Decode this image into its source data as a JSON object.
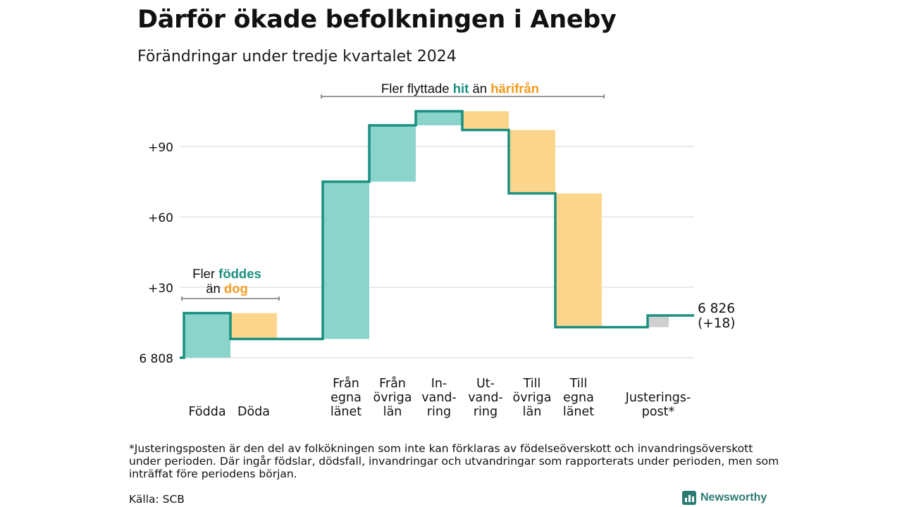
{
  "title": "Därför ökade befolkningen i Aneby",
  "subtitle": "Förändringar under tredje kvartalet 2024",
  "chart_data": {
    "type": "waterfall",
    "base_value": 6808,
    "end_value": 6826,
    "y_ticks": [
      {
        "value": 0,
        "label": "6 808"
      },
      {
        "value": 30,
        "label": "+30"
      },
      {
        "value": 60,
        "label": "+60"
      },
      {
        "value": 90,
        "label": "+90"
      }
    ],
    "steps": [
      {
        "key": "fodda",
        "label": [
          "Födda"
        ],
        "value": 19,
        "kind": "inflow"
      },
      {
        "key": "doda",
        "label": [
          "Döda"
        ],
        "value": -11,
        "kind": "outflow"
      },
      {
        "key": "fran_egna_lanet",
        "label": [
          "Från",
          "egna",
          "länet"
        ],
        "value": 67,
        "kind": "inflow"
      },
      {
        "key": "fran_ovriga_lan",
        "label": [
          "Från",
          "övriga",
          "län"
        ],
        "value": 24,
        "kind": "inflow"
      },
      {
        "key": "invandring",
        "label": [
          "In-",
          "vand-",
          "ring"
        ],
        "value": 6,
        "kind": "inflow"
      },
      {
        "key": "utvandring",
        "label": [
          "Ut-",
          "vand-",
          "ring"
        ],
        "value": -8,
        "kind": "outflow"
      },
      {
        "key": "till_ovriga_lan",
        "label": [
          "Till",
          "övriga",
          "län"
        ],
        "value": -27,
        "kind": "outflow"
      },
      {
        "key": "till_egna_lanet",
        "label": [
          "Till",
          "egna",
          "länet"
        ],
        "value": -57,
        "kind": "outflow"
      },
      {
        "key": "justeringspost",
        "label": [
          "Justerings-",
          "post*"
        ],
        "value": 5,
        "kind": "adjustment"
      }
    ],
    "end_label": [
      "6 826",
      "(+18)"
    ],
    "annotations": {
      "births": {
        "prefix": "Fler",
        "word1": "föddes",
        "line2_prefix": "än",
        "word2": "dog"
      },
      "migration": {
        "prefix": "Fler flyttade",
        "word1": "hit",
        "middle": "än",
        "word2": "härifrån"
      }
    },
    "colors": {
      "line": "#1b9080",
      "inflow": "#8ad4cb",
      "outflow": "#fcd58d",
      "adjustment": "#cfcfcf",
      "accent_in": "#1b9080",
      "accent_out": "#f29c1f",
      "grid": "#dddddd"
    }
  },
  "footnote": "*Justeringsposten är den del av folkökningen som inte kan förklaras av födelseöverskott och invandringsöverskott under perioden. Där ingår födslar, dödsfall, invandringar och utvandringar som rapporterats under perioden, men som inträffat före periodens början.",
  "source": "Källa: SCB",
  "brand": "Newsworthy",
  "brand_icon": "bar-chart-icon"
}
